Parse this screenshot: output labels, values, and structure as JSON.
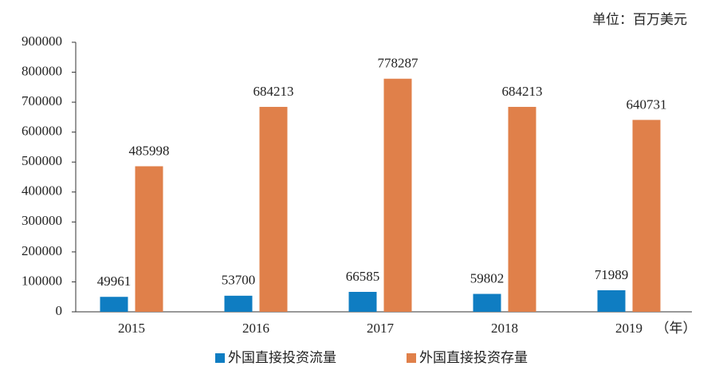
{
  "chart_data": {
    "type": "bar",
    "unit_label": "单位：百万美元",
    "x_unit_label": "（年）",
    "categories": [
      "2015",
      "2016",
      "2017",
      "2018",
      "2019"
    ],
    "series": [
      {
        "name": "外国直接投资流量",
        "color": "#0f7dc2",
        "values": [
          49961,
          53700,
          66585,
          59802,
          71989
        ]
      },
      {
        "name": "外国直接投资存量",
        "color": "#e0804a",
        "values": [
          485998,
          684213,
          778287,
          684213,
          640731
        ]
      }
    ],
    "ylim": [
      0,
      900000
    ],
    "yticks": [
      0,
      100000,
      200000,
      300000,
      400000,
      500000,
      600000,
      700000,
      800000,
      900000
    ],
    "legend": "bottom"
  }
}
